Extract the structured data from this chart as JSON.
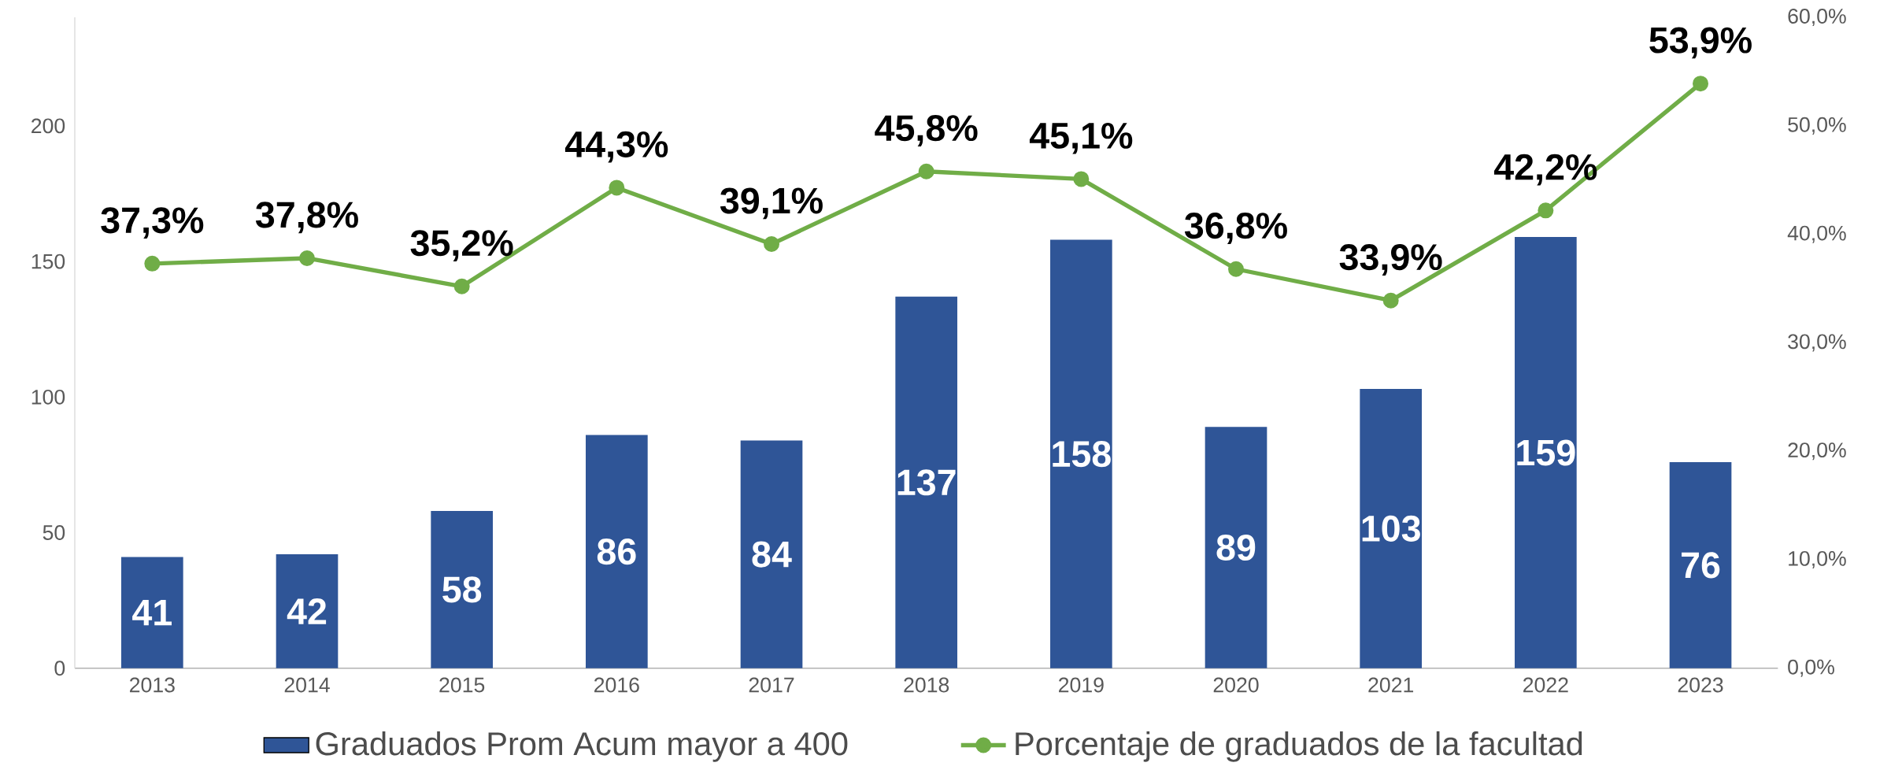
{
  "chart_data": {
    "type": "bar",
    "categories": [
      "2013",
      "2014",
      "2015",
      "2016",
      "2017",
      "2018",
      "2019",
      "2020",
      "2021",
      "2022",
      "2023"
    ],
    "series": [
      {
        "name": "Graduados Prom Acum mayor a 400",
        "color": "#2f5597",
        "values": [
          41,
          42,
          58,
          86,
          84,
          137,
          158,
          89,
          103,
          159,
          76
        ],
        "value_labels": [
          "41",
          "42",
          "58",
          "86",
          "84",
          "137",
          "158",
          "89",
          "103",
          "159",
          "76"
        ]
      },
      {
        "name": "Porcentaje de graduados de la facultad",
        "type": "line",
        "axis": "y2",
        "color": "#70ad47",
        "marker": "circle",
        "values": [
          37.3,
          37.8,
          35.2,
          44.3,
          39.1,
          45.8,
          45.1,
          36.8,
          33.9,
          42.2,
          53.9
        ],
        "value_labels": [
          "37,3%",
          "37,8%",
          "35,2%",
          "44,3%",
          "39,1%",
          "45,8%",
          "45,1%",
          "36,8%",
          "33,9%",
          "42,2%",
          "53,9%"
        ]
      }
    ],
    "ylim": [
      0,
      240
    ],
    "yticks": [
      0,
      50,
      100,
      150,
      200
    ],
    "y2lim": [
      0,
      60
    ],
    "y2ticks": [
      {
        "value": 0,
        "label": "0,0%"
      },
      {
        "value": 10,
        "label": "10,0%"
      },
      {
        "value": 20,
        "label": "20,0%"
      },
      {
        "value": 30,
        "label": "30,0%"
      },
      {
        "value": 40,
        "label": "40,0%"
      },
      {
        "value": 50,
        "label": "50,0%"
      },
      {
        "value": 60,
        "label": "60,0%"
      }
    ],
    "legend": "bottom"
  }
}
